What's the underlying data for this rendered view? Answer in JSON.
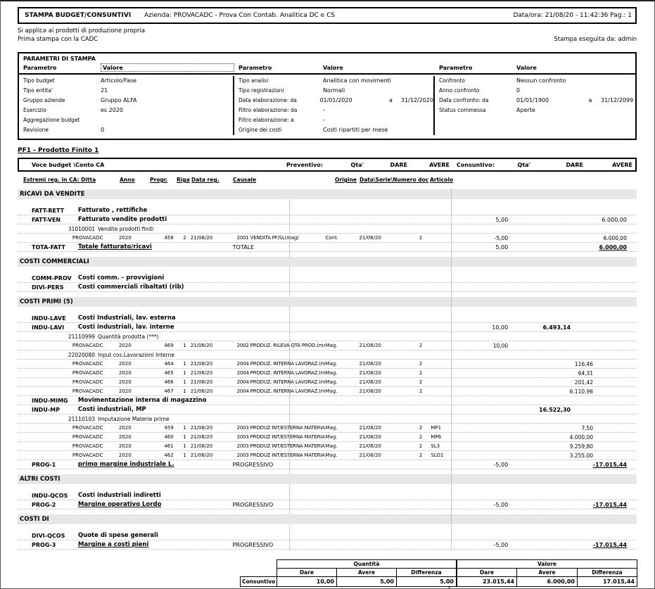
{
  "header": {
    "title": "STAMPA BUDGET/CONSUNTIVI",
    "company": "Azienda: PROVACADC - Prova Con Contab. Analitica DC e CS",
    "date_page": "Data/ora: 21/08/20 - 11:42:36  Pag.: 1",
    "note1": "Si applica ai prodotti di produzione propria",
    "note2": "Prima stampa con la CADC",
    "printed_by": "Stampa eseguita da: admin"
  },
  "params": {
    "title": "PARAMETRI DI STAMPA",
    "param_header": "Parametro",
    "value_header": "Valore",
    "columns": [
      {
        "rows": [
          {
            "label": "Tipo budget",
            "value": "Articolo/Fase"
          },
          {
            "label": "Tipo entita'",
            "value": "21"
          },
          {
            "label": "Gruppo aziende",
            "value": "Gruppo ALFA"
          },
          {
            "label": "Esercizio",
            "value": "es 2020"
          },
          {
            "label": "Aggregazione budget",
            "value": ""
          },
          {
            "label": "Revisione",
            "value": "0"
          }
        ]
      },
      {
        "rows": [
          {
            "label": "Tipo analisi",
            "value": "Analitica con movimenti"
          },
          {
            "label": "Tipo registrazioni",
            "value": "Normali"
          },
          {
            "label": "Data elaborazione: da",
            "value": "01/01/2020",
            "sep": "a",
            "value2": "31/12/2020"
          },
          {
            "label": "Filtro elaborazione: da",
            "value": "-"
          },
          {
            "label": "Filtro elaborazione: a",
            "value": "-"
          },
          {
            "label": "Origine dei costi",
            "value": "Costi ripartiti per mese"
          }
        ]
      },
      {
        "rows": [
          {
            "label": "Confronto",
            "value": "Nessun confronto"
          },
          {
            "label": "Anno confronto",
            "value": "0"
          },
          {
            "label": "Data confronto: da",
            "value": "01/01/1900",
            "sep": "a",
            "value2": "31/12/2099"
          },
          {
            "label": "Status commessa",
            "value": "Aperte"
          }
        ]
      }
    ]
  },
  "product_title": "PF1 - Prodotto Finito 1",
  "table_header": {
    "voce": "Voce budget \\Conto CA",
    "preventivo": "Preventivo:",
    "consuntivo": "Consuntivo:",
    "qta": "Qta'",
    "dare": "DARE",
    "avere": "AVERE",
    "estremi": "Estremi reg. in CA: Ditta",
    "anno": "Anno",
    "progr": "Progr.",
    "riga": "Riga",
    "datareg": "Data reg.",
    "causale": "Causale",
    "origine": "Origine",
    "doc": "Data\\Serie\\Numero doc",
    "articolo": "Articolo"
  },
  "body": [
    {
      "t": "section",
      "label": "RICAVI DA VENDITE"
    },
    {
      "t": "voce",
      "code": "FATT-RETT",
      "desc": "Fatturato , rettifiche"
    },
    {
      "t": "voce",
      "code": "FATT-VEN",
      "desc": "Fatturato vendite prodotti",
      "qta": "5,00",
      "avere": "6.000,00"
    },
    {
      "t": "conto",
      "code": "31010001",
      "desc": "Vendite prodotti finiti"
    },
    {
      "t": "mov",
      "ditta": "PROVACADC",
      "anno": "2020",
      "progr": "458",
      "riga": "2",
      "datareg": "21/08/20",
      "causale": "2001 VENDITA PF/SL(mag)",
      "origine": "Cont.",
      "datadoc": "21/08/20",
      "numdoc": "2",
      "articolo": "",
      "qta": "-5,00",
      "avere": "6.000,00"
    },
    {
      "t": "voce",
      "code": "TOTA-FATT",
      "desc": "Totale fatturato/ricavi",
      "desc_underline": true,
      "mid": "TOTALE",
      "qta": "5,00",
      "avere": "6.000,00",
      "strong": true
    },
    {
      "t": "section",
      "label": "COSTI COMMERCIALI"
    },
    {
      "t": "voce",
      "code": "COMM-PROV",
      "desc": "Costi comm. - provvigioni"
    },
    {
      "t": "voce",
      "code": "DIVI-PERS",
      "desc": "Costi commerciali ribaltati (rib)"
    },
    {
      "t": "section",
      "label": "COSTI PRIMI (5)"
    },
    {
      "t": "voce",
      "code": "INDU-LAVE",
      "desc": "Costi Industriali, lav. esterna"
    },
    {
      "t": "voce",
      "code": "INDU-LAVI",
      "desc": "Costi industriali, lav. interne",
      "qta": "10,00",
      "dare": "6.493,14",
      "dare_bold": true
    },
    {
      "t": "conto",
      "code": "21110999",
      "desc": "Quantità prodotta (***)"
    },
    {
      "t": "mov",
      "ditta": "PROVACADC",
      "anno": "2020",
      "progr": "469",
      "riga": "1",
      "datareg": "21/08/20",
      "causale": "2002 PRODUZ. RILEVA QTA PROD.(mag)",
      "origine": "Mag.",
      "datadoc": "21/08/20",
      "numdoc": "2",
      "articolo": "",
      "qta": "10,00"
    },
    {
      "t": "conto",
      "code": "22020080",
      "desc": "Input cos.Lavorazioni Interne"
    },
    {
      "t": "mov",
      "ditta": "PROVACADC",
      "anno": "2020",
      "progr": "464",
      "riga": "1",
      "datareg": "21/08/20",
      "causale": "2004 PRODUZ. INTERNA LAVORAZ.(mag)",
      "origine": "Mag.",
      "datadoc": "21/08/20",
      "numdoc": "2",
      "articolo": "",
      "dare": "116,46"
    },
    {
      "t": "mov",
      "ditta": "PROVACADC",
      "anno": "2020",
      "progr": "465",
      "riga": "1",
      "datareg": "21/08/20",
      "causale": "2004 PRODUZ. INTERNA LAVORAZ.(mag)",
      "origine": "Mag.",
      "datadoc": "21/08/20",
      "numdoc": "2",
      "articolo": "",
      "dare": "64,31"
    },
    {
      "t": "mov",
      "ditta": "PROVACADC",
      "anno": "2020",
      "progr": "466",
      "riga": "1",
      "datareg": "21/08/20",
      "causale": "2004 PRODUZ. INTERNA LAVORAZ.(mag)",
      "origine": "Mag.",
      "datadoc": "21/08/20",
      "numdoc": "2",
      "articolo": "",
      "dare": "201,42"
    },
    {
      "t": "mov",
      "ditta": "PROVACADC",
      "anno": "2020",
      "progr": "467",
      "riga": "1",
      "datareg": "21/08/20",
      "causale": "2004 PRODUZ. INTERNA LAVORAZ.(mag)",
      "origine": "Mag.",
      "datadoc": "21/08/20",
      "numdoc": "2",
      "articolo": "",
      "dare": "6.110,96"
    },
    {
      "t": "voce",
      "code": "INDU-MIMG",
      "desc": "Movimentazione interna di magazzino"
    },
    {
      "t": "voce",
      "code": "INDU-MP",
      "desc": "Costi industriali, MP",
      "dare": "16.522,30",
      "dare_bold": true
    },
    {
      "t": "conto",
      "code": "21110103",
      "desc": "Imputazione Materie prime"
    },
    {
      "t": "mov",
      "ditta": "PROVACADC",
      "anno": "2020",
      "progr": "459",
      "riga": "1",
      "datareg": "21/08/20",
      "causale": "2003 PRODUZ INT/ESTERNA MATERIALI",
      "origine": "Mag.",
      "datadoc": "21/08/20",
      "numdoc": "2",
      "articolo": "MP1",
      "dare": "7,50"
    },
    {
      "t": "mov",
      "ditta": "PROVACADC",
      "anno": "2020",
      "progr": "460",
      "riga": "1",
      "datareg": "21/08/20",
      "causale": "2003 PRODUZ INT/ESTERNA MATERIALI",
      "origine": "Mag.",
      "datadoc": "21/08/20",
      "numdoc": "2",
      "articolo": "MP6",
      "dare": "4.000,00"
    },
    {
      "t": "mov",
      "ditta": "PROVACADC",
      "anno": "2020",
      "progr": "461",
      "riga": "1",
      "datareg": "21/08/20",
      "causale": "2003 PRODUZ INT/ESTERNA MATERIALI",
      "origine": "Mag.",
      "datadoc": "21/08/20",
      "numdoc": "2",
      "articolo": "SL3",
      "dare": "9.259,80"
    },
    {
      "t": "mov",
      "ditta": "PROVACADC",
      "anno": "2020",
      "progr": "462",
      "riga": "1",
      "datareg": "21/08/20",
      "causale": "2003 PRODUZ INT/ESTERNA MATERIALI",
      "origine": "Mag.",
      "datadoc": "21/08/20",
      "numdoc": "2",
      "articolo": "SLO1",
      "dare": "3.255,00"
    },
    {
      "t": "voce",
      "code": "PROG-1",
      "desc": "primo margine industriale L.",
      "desc_underline": true,
      "mid": "PROGRESSIVO",
      "qta": "-5,00",
      "avere": "-17.015,44",
      "strong": true
    },
    {
      "t": "section",
      "label": "ALTRI COSTI"
    },
    {
      "t": "voce",
      "code": "INDU-QCOS",
      "desc": "Costi industriali indiretti"
    },
    {
      "t": "voce",
      "code": "PROG-2",
      "desc": "Margine operativo Lordo",
      "desc_underline": true,
      "mid": "PROGRESSIVO",
      "qta": "-5,00",
      "avere": "-17.015,44",
      "strong": true
    },
    {
      "t": "section",
      "label": "COSTI DI"
    },
    {
      "t": "voce",
      "code": "DIVI-QCOS",
      "desc": "Quote di spese generali"
    },
    {
      "t": "voce",
      "code": "PROG-3",
      "desc": "Margine a costi pieni",
      "desc_underline": true,
      "mid": "PROGRESSIVO",
      "qta": "-5,00",
      "avere": "-17.015,44",
      "strong": true
    }
  ],
  "summary": {
    "row_label": "Consuntivo",
    "groups": [
      {
        "label": "Quantità",
        "cols": [
          "Dare",
          "Avere",
          "Differenza"
        ],
        "values": [
          "10,00",
          "5,00",
          "5,00"
        ]
      },
      {
        "label": "Valore",
        "cols": [
          "Dare",
          "Avere",
          "Differenza"
        ],
        "values": [
          "23.015,44",
          "6.000,00",
          "17.015,44"
        ]
      }
    ]
  }
}
